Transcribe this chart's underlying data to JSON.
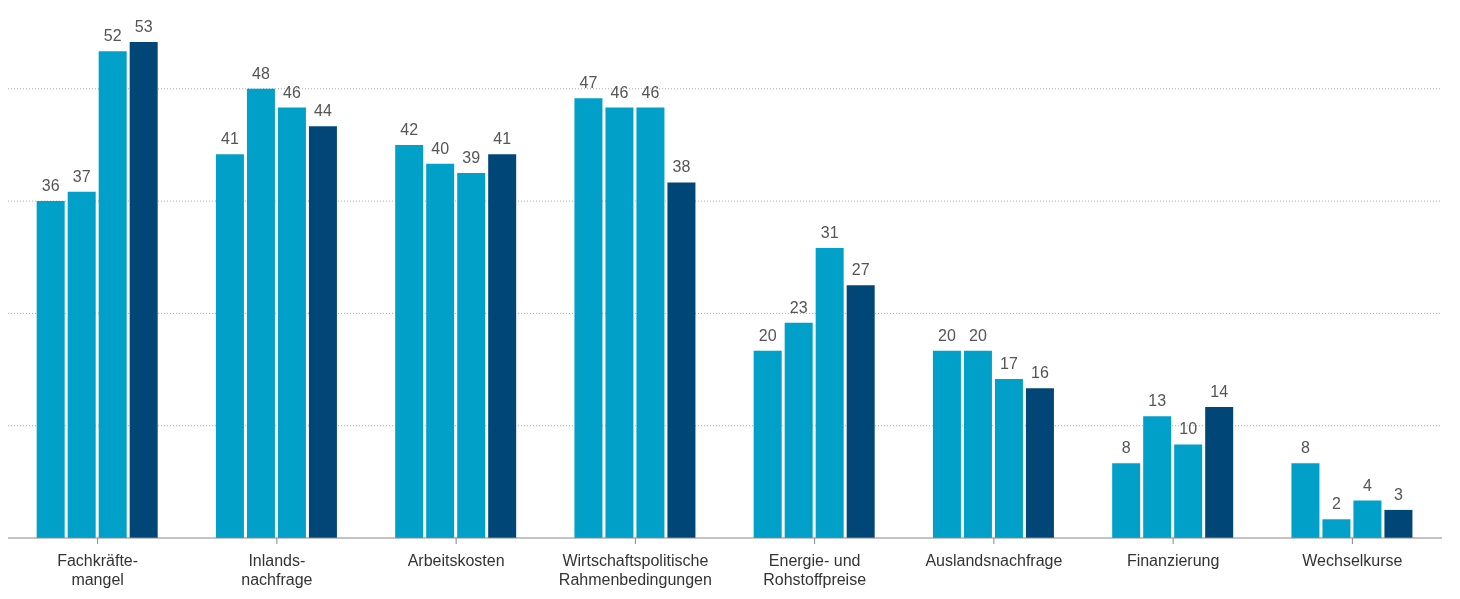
{
  "chart_data": {
    "type": "bar",
    "categories": [
      "Fachkräfte-\nmangel",
      "Inlands-\nnachfrage",
      "Arbeitskosten",
      "Wirtschaftspolitische\nRahmenbedingungen",
      "Energie- und\nRohstoffpreise",
      "Auslandsnachfrage",
      "Finanzierung",
      "Wechselkurse"
    ],
    "series": [
      {
        "color": "#00a0c8",
        "values": [
          36,
          41,
          42,
          47,
          20,
          20,
          8,
          8
        ]
      },
      {
        "color": "#00a0c8",
        "values": [
          37,
          48,
          40,
          46,
          23,
          20,
          13,
          2
        ]
      },
      {
        "color": "#00a0c8",
        "values": [
          52,
          46,
          39,
          46,
          31,
          17,
          10,
          4
        ]
      },
      {
        "color": "#004676",
        "values": [
          53,
          44,
          41,
          38,
          27,
          16,
          14,
          3
        ]
      }
    ],
    "yticks": [
      {
        "value": 0,
        "label": null
      },
      {
        "value": 12,
        "label": null
      },
      {
        "value": 24,
        "label": null
      },
      {
        "value": 36,
        "label": null
      },
      {
        "value": 48,
        "label": null
      }
    ],
    "grid": "y",
    "tick_labels": "x",
    "data_labels": true,
    "legend": false
  }
}
